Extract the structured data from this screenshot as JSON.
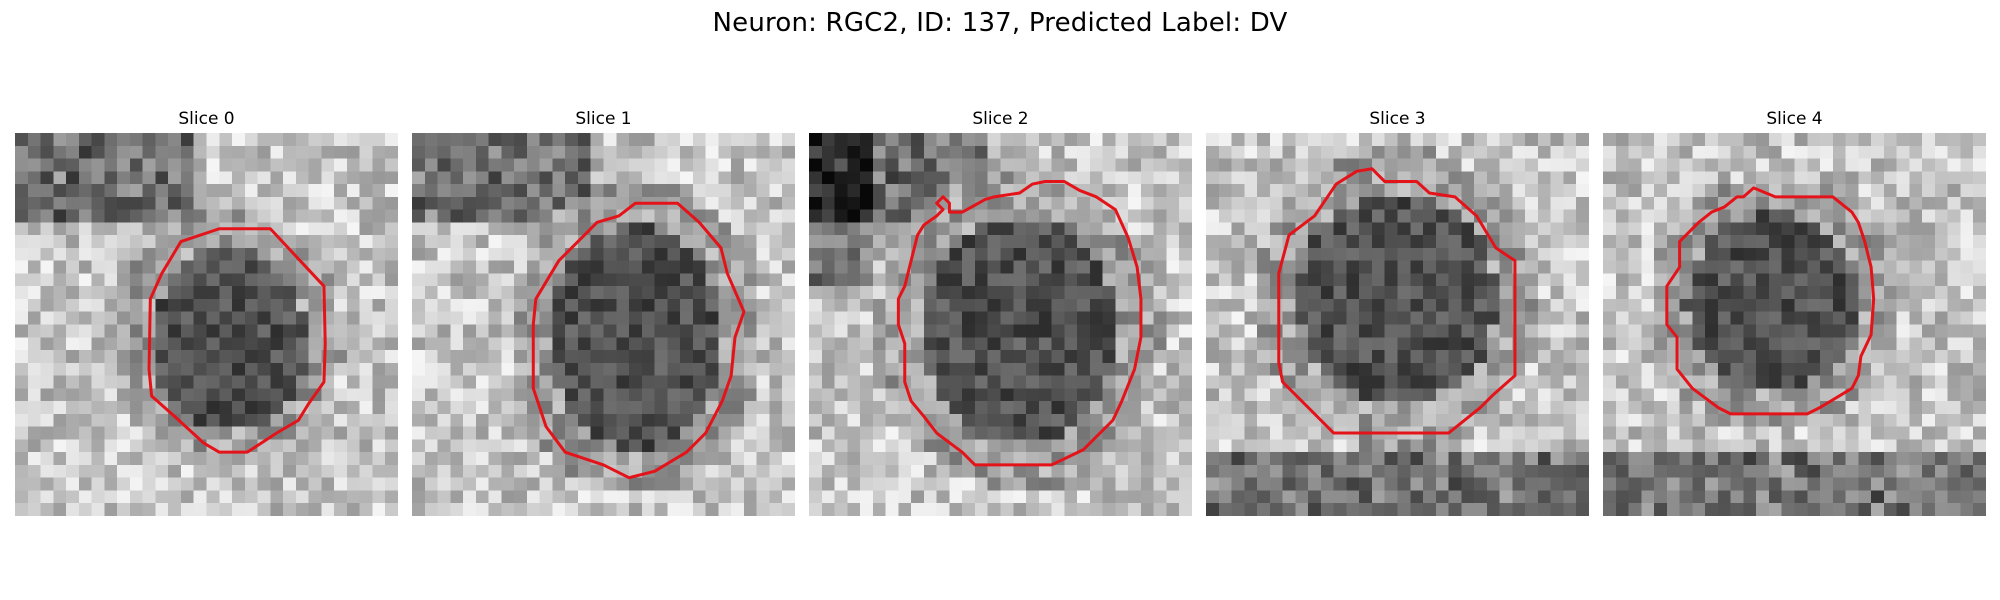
{
  "figure": {
    "title": "Neuron: RGC2, ID: 137, Predicted Label: DV"
  },
  "colors": {
    "background": "#ffffff",
    "contour": "#e4131a",
    "image_colormap": "grayscale"
  },
  "panels": [
    {
      "title": "Slice 0",
      "image_content": "grayscale microscopy patch with dark circular soma",
      "roi_contour_color": "red"
    },
    {
      "title": "Slice 1",
      "image_content": "grayscale microscopy patch with dark circular soma",
      "roi_contour_color": "red"
    },
    {
      "title": "Slice 2",
      "image_content": "grayscale microscopy patch with dark circular soma",
      "roi_contour_color": "red"
    },
    {
      "title": "Slice 3",
      "image_content": "grayscale microscopy patch with dark circular soma",
      "roi_contour_color": "red"
    },
    {
      "title": "Slice 4",
      "image_content": "grayscale microscopy patch with dark circular soma",
      "roi_contour_color": "red"
    }
  ]
}
